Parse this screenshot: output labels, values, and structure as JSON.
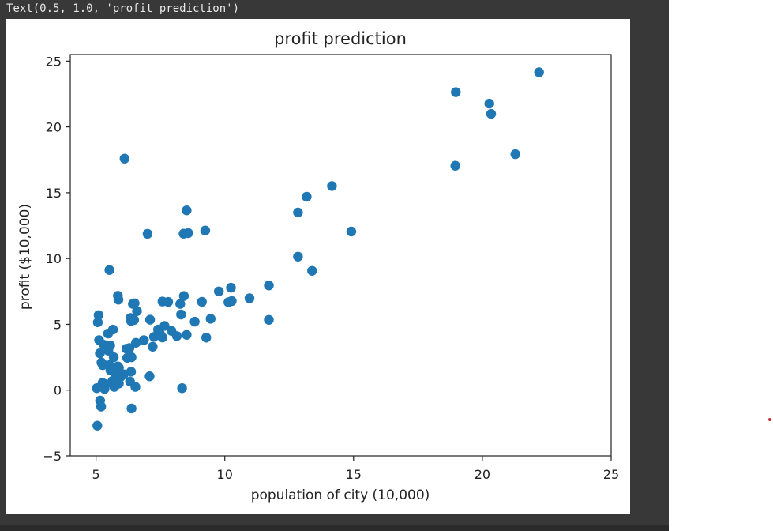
{
  "output_text": "Text(0.5, 1.0, 'profit prediction')",
  "colors": {
    "point": "#1f77b4",
    "background": "#383838",
    "marker_dot": "#cc2a2a"
  },
  "chart_data": {
    "type": "scatter",
    "title": "profit prediction",
    "xlabel": "population of city (10,000)",
    "ylabel": "profit ($10,000)",
    "xlim": [
      4,
      25
    ],
    "ylim": [
      -5,
      25.5
    ],
    "xticks": [
      5,
      10,
      15,
      20,
      25
    ],
    "yticks": [
      -5,
      0,
      5,
      10,
      15,
      20,
      25
    ],
    "grid": false,
    "legend": "none",
    "x": [
      22.2,
      18.95,
      20.27,
      20.34,
      21.28,
      18.97,
      13.18,
      14.16,
      12.84,
      14.91,
      12.84,
      13.39,
      6.11,
      8.52,
      9.24,
      7.0,
      8.4,
      8.58,
      5.52,
      5.85,
      5.87,
      6.5,
      7.58,
      8.27,
      9.11,
      9.77,
      10.24,
      10.14,
      10.27,
      10.96,
      11.71,
      11.71,
      9.45,
      9.28,
      8.83,
      8.52,
      8.41,
      8.3,
      8.14,
      7.93,
      7.8,
      7.66,
      7.58,
      7.48,
      7.41,
      7.25,
      7.1,
      7.2,
      6.86,
      6.59,
      6.48,
      6.43,
      6.36,
      6.34,
      6.3,
      6.55,
      6.18,
      6.21,
      6.36,
      6.32,
      6.38,
      6.53,
      7.08,
      8.34,
      5.05,
      5.1,
      5.07,
      5.12,
      5.15,
      5.21,
      5.25,
      5.33,
      5.37,
      5.52,
      5.56,
      5.62,
      5.64,
      5.71,
      5.73,
      5.8,
      5.89,
      5.95,
      5.89,
      5.75,
      5.69,
      5.48,
      5.43,
      5.31,
      5.25,
      5.16,
      5.2,
      5.26,
      5.47,
      5.55,
      5.66,
      5.85,
      6.08,
      6.38,
      5.03
    ],
    "y": [
      24.15,
      17.05,
      21.77,
      20.99,
      17.93,
      22.64,
      14.69,
      15.51,
      13.5,
      12.05,
      10.14,
      9.06,
      17.59,
      13.66,
      12.13,
      11.88,
      11.89,
      11.93,
      9.13,
      7.17,
      6.87,
      6.6,
      6.73,
      6.55,
      6.71,
      7.5,
      7.78,
      6.68,
      6.77,
      6.98,
      7.95,
      5.34,
      5.42,
      3.99,
      5.2,
      4.2,
      7.15,
      5.75,
      4.11,
      4.5,
      6.7,
      4.88,
      4.0,
      4.3,
      4.6,
      4.05,
      5.35,
      3.3,
      3.8,
      6.0,
      5.33,
      6.55,
      5.25,
      5.48,
      3.2,
      3.6,
      3.15,
      2.45,
      1.4,
      0.65,
      -1.4,
      0.25,
      1.05,
      0.15,
      -2.7,
      5.7,
      5.15,
      3.8,
      2.8,
      2.1,
      0.55,
      0.1,
      0.45,
      1.9,
      1.5,
      1.6,
      0.7,
      0.25,
      0.65,
      0.85,
      0.5,
      1.0,
      1.7,
      1.3,
      2.5,
      3.0,
      3.4,
      3.45,
      2.0,
      -0.8,
      -1.25,
      1.9,
      4.3,
      3.4,
      4.6,
      1.8,
      1.2,
      2.5,
      0.15
    ]
  }
}
